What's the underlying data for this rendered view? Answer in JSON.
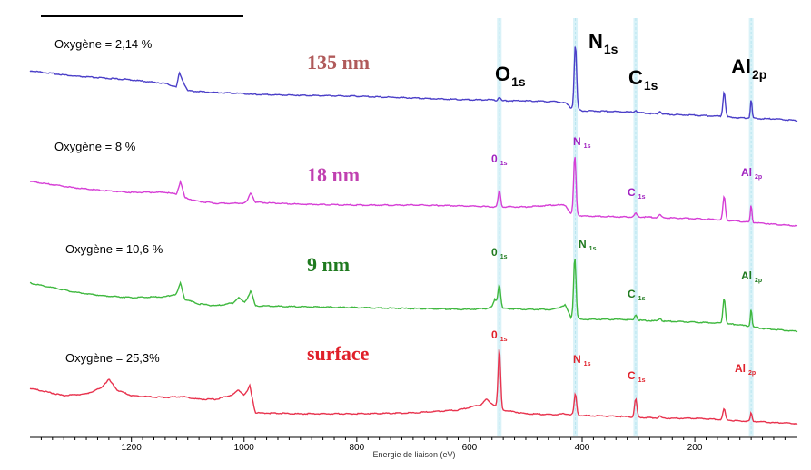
{
  "chart_data": {
    "type": "line",
    "xlabel": "Energie de liaison (eV)",
    "xlim": [
      1380,
      18
    ],
    "x_reversed": true,
    "x_ticks": [
      1200,
      1000,
      800,
      600,
      400,
      200
    ],
    "x_tick_labels": [
      "1200",
      "1000",
      "800",
      "600",
      "400",
      "200"
    ],
    "peak_markers": [
      {
        "name": "O 1s",
        "x": 547
      },
      {
        "name": "N 1s",
        "x": 412
      },
      {
        "name": "C 1s",
        "x": 305
      },
      {
        "name": "Al 2p",
        "x": 100
      }
    ],
    "series": [
      {
        "id": "s135",
        "depth_label": "135 nm",
        "oxygen_label": "Oxygène = 2,14 %",
        "color": "#4b3fc8",
        "baseline": [
          [
            1380,
            78
          ],
          [
            1300,
            84
          ],
          [
            1250,
            86
          ],
          [
            1200,
            88
          ],
          [
            1140,
            92
          ],
          [
            1120,
            96
          ],
          [
            1115,
            80
          ],
          [
            1105,
            94
          ],
          [
            1100,
            100
          ],
          [
            1050,
            102
          ],
          [
            1000,
            103
          ],
          [
            990,
            104
          ],
          [
            900,
            105
          ],
          [
            800,
            106
          ],
          [
            700,
            108
          ],
          [
            600,
            110
          ],
          [
            560,
            110
          ],
          [
            550,
            111
          ],
          [
            540,
            111
          ],
          [
            500,
            111
          ],
          [
            450,
            112
          ],
          [
            430,
            113
          ],
          [
            420,
            119
          ],
          [
            400,
            122
          ],
          [
            330,
            123
          ],
          [
            300,
            124
          ],
          [
            280,
            125
          ],
          [
            250,
            126
          ],
          [
            200,
            127
          ],
          [
            160,
            128
          ],
          [
            140,
            129
          ],
          [
            120,
            130
          ],
          [
            100,
            130
          ],
          [
            80,
            131
          ],
          [
            60,
            131
          ],
          [
            40,
            132
          ],
          [
            18,
            133
          ]
        ],
        "peaks": [
          {
            "x": 412,
            "h": 71,
            "w": 3
          },
          {
            "x": 547,
            "h": 4,
            "w": 3
          },
          {
            "x": 305,
            "h": 2,
            "w": 3
          },
          {
            "x": 262,
            "h": 3,
            "w": 3
          },
          {
            "x": 148,
            "h": 27,
            "w": 3
          },
          {
            "x": 100,
            "h": 21,
            "w": 2
          }
        ]
      },
      {
        "id": "s18",
        "depth_label": "18 nm",
        "oxygen_label": "Oxygène = 8 %",
        "color": "#d63fd6",
        "baseline": [
          [
            1380,
            200
          ],
          [
            1300,
            207
          ],
          [
            1250,
            210
          ],
          [
            1200,
            212
          ],
          [
            1140,
            212
          ],
          [
            1120,
            214
          ],
          [
            1113,
            200
          ],
          [
            1105,
            218
          ],
          [
            1080,
            222
          ],
          [
            1050,
            224
          ],
          [
            1000,
            224
          ],
          [
            995,
            222
          ],
          [
            988,
            212
          ],
          [
            980,
            223
          ],
          [
            900,
            225
          ],
          [
            800,
            226
          ],
          [
            700,
            226
          ],
          [
            600,
            227
          ],
          [
            560,
            228
          ],
          [
            550,
            228
          ],
          [
            500,
            228
          ],
          [
            450,
            226
          ],
          [
            430,
            226
          ],
          [
            420,
            236
          ],
          [
            400,
            238
          ],
          [
            330,
            239
          ],
          [
            300,
            239
          ],
          [
            250,
            240
          ],
          [
            200,
            241
          ],
          [
            160,
            242
          ],
          [
            140,
            243
          ],
          [
            120,
            244
          ],
          [
            100,
            245
          ],
          [
            80,
            246
          ],
          [
            60,
            247
          ],
          [
            40,
            248
          ],
          [
            18,
            249
          ]
        ],
        "peaks": [
          {
            "x": 413,
            "h": 65,
            "w": 3
          },
          {
            "x": 547,
            "h": 18,
            "w": 3
          },
          {
            "x": 305,
            "h": 4,
            "w": 3
          },
          {
            "x": 262,
            "h": 3,
            "w": 3
          },
          {
            "x": 148,
            "h": 26,
            "w": 3
          },
          {
            "x": 100,
            "h": 19,
            "w": 2
          }
        ]
      },
      {
        "id": "s9",
        "depth_label": "9 nm",
        "oxygen_label": "Oxygène = 10,6 %",
        "color": "#3fb83f",
        "baseline": [
          [
            1380,
            312
          ],
          [
            1300,
            322
          ],
          [
            1250,
            326
          ],
          [
            1200,
            328
          ],
          [
            1140,
            327
          ],
          [
            1120,
            324
          ],
          [
            1113,
            312
          ],
          [
            1105,
            330
          ],
          [
            1080,
            335
          ],
          [
            1050,
            337
          ],
          [
            1020,
            334
          ],
          [
            1010,
            328
          ],
          [
            1000,
            333
          ],
          [
            995,
            330
          ],
          [
            988,
            320
          ],
          [
            980,
            337
          ],
          [
            900,
            338
          ],
          [
            800,
            339
          ],
          [
            700,
            340
          ],
          [
            600,
            341
          ],
          [
            570,
            340
          ],
          [
            560,
            338
          ],
          [
            555,
            330
          ],
          [
            540,
            340
          ],
          [
            500,
            341
          ],
          [
            450,
            341
          ],
          [
            430,
            336
          ],
          [
            420,
            350
          ],
          [
            400,
            352
          ],
          [
            330,
            352
          ],
          [
            300,
            353
          ],
          [
            250,
            354
          ],
          [
            200,
            355
          ],
          [
            160,
            356
          ],
          [
            140,
            357
          ],
          [
            120,
            358
          ],
          [
            100,
            360
          ],
          [
            80,
            362
          ],
          [
            60,
            363
          ],
          [
            40,
            364
          ],
          [
            18,
            365
          ]
        ],
        "peaks": [
          {
            "x": 413,
            "h": 67,
            "w": 3
          },
          {
            "x": 547,
            "h": 22,
            "w": 3
          },
          {
            "x": 305,
            "h": 6,
            "w": 3
          },
          {
            "x": 262,
            "h": 3,
            "w": 3
          },
          {
            "x": 148,
            "h": 28,
            "w": 3
          },
          {
            "x": 100,
            "h": 20,
            "w": 2
          }
        ]
      },
      {
        "id": "ssurf",
        "depth_label": "surface",
        "oxygen_label": "Oxygène = 25,3%",
        "color": "#e8334e",
        "baseline": [
          [
            1380,
            428
          ],
          [
            1320,
            436
          ],
          [
            1280,
            434
          ],
          [
            1255,
            428
          ],
          [
            1240,
            418
          ],
          [
            1225,
            430
          ],
          [
            1200,
            436
          ],
          [
            1140,
            438
          ],
          [
            1110,
            437
          ],
          [
            1080,
            440
          ],
          [
            1050,
            440
          ],
          [
            1020,
            435
          ],
          [
            1010,
            430
          ],
          [
            1000,
            435
          ],
          [
            995,
            432
          ],
          [
            990,
            425
          ],
          [
            985,
            440
          ],
          [
            980,
            455
          ],
          [
            900,
            456
          ],
          [
            800,
            456
          ],
          [
            700,
            455
          ],
          [
            620,
            452
          ],
          [
            580,
            446
          ],
          [
            570,
            440
          ],
          [
            560,
            445
          ],
          [
            550,
            448
          ],
          [
            540,
            452
          ],
          [
            500,
            456
          ],
          [
            450,
            457
          ],
          [
            430,
            456
          ],
          [
            420,
            457
          ],
          [
            400,
            458
          ],
          [
            330,
            459
          ],
          [
            300,
            460
          ],
          [
            250,
            461
          ],
          [
            200,
            461
          ],
          [
            160,
            462
          ],
          [
            140,
            463
          ],
          [
            120,
            464
          ],
          [
            100,
            464
          ],
          [
            80,
            465
          ],
          [
            60,
            466
          ],
          [
            40,
            466
          ],
          [
            18,
            467
          ]
        ],
        "peaks": [
          {
            "x": 547,
            "h": 65,
            "w": 3
          },
          {
            "x": 412,
            "h": 23,
            "w": 3
          },
          {
            "x": 305,
            "h": 20,
            "w": 3
          },
          {
            "x": 262,
            "h": 2,
            "w": 3
          },
          {
            "x": 148,
            "h": 12,
            "w": 3
          },
          {
            "x": 100,
            "h": 9,
            "w": 2
          }
        ]
      }
    ],
    "annotations": [
      {
        "id": "o1s_top",
        "text": "O",
        "sub": "1s",
        "color": "#000000",
        "size": 22,
        "weight": "bold"
      },
      {
        "id": "n1s_top",
        "text": "N",
        "sub": "1s",
        "color": "#000000",
        "size": 22,
        "weight": "bold"
      },
      {
        "id": "c1s_top",
        "text": "C",
        "sub": "1s",
        "color": "#000000",
        "size": 22,
        "weight": "bold"
      },
      {
        "id": "al2p_top",
        "text": "Al",
        "sub": "2p",
        "color": "#000000",
        "size": 22,
        "weight": "bold"
      },
      {
        "id": "o1s_s18",
        "text": "0",
        "sub": "1s",
        "color": "#a020c0",
        "size": 12,
        "weight": "bold"
      },
      {
        "id": "n1s_s18",
        "text": "N",
        "sub": "1s",
        "color": "#a020c0",
        "size": 12,
        "weight": "bold"
      },
      {
        "id": "c1s_s18",
        "text": "C",
        "sub": "1s",
        "color": "#a020c0",
        "size": 12,
        "weight": "bold"
      },
      {
        "id": "al2p_s18",
        "text": "Al",
        "sub": "2p",
        "color": "#a020c0",
        "size": 12,
        "weight": "bold"
      },
      {
        "id": "o1s_s9",
        "text": "0",
        "sub": "1s",
        "color": "#1f7a1f",
        "size": 12,
        "weight": "bold"
      },
      {
        "id": "n1s_s9",
        "text": "N",
        "sub": "1s",
        "color": "#1f7a1f",
        "size": 12,
        "weight": "bold"
      },
      {
        "id": "c1s_s9",
        "text": "C",
        "sub": "1s",
        "color": "#1f7a1f",
        "size": 12,
        "weight": "bold"
      },
      {
        "id": "al2p_s9",
        "text": "Al",
        "sub": "2p",
        "color": "#1f7a1f",
        "size": 12,
        "weight": "bold"
      },
      {
        "id": "o1s_surf",
        "text": "0",
        "sub": "1s",
        "color": "#e0202a",
        "size": 12,
        "weight": "bold"
      },
      {
        "id": "n1s_surf",
        "text": "N",
        "sub": "1s",
        "color": "#e0202a",
        "size": 12,
        "weight": "bold"
      },
      {
        "id": "c1s_surf",
        "text": "C",
        "sub": "1s",
        "color": "#e0202a",
        "size": 12,
        "weight": "bold"
      },
      {
        "id": "al2p_surf",
        "text": "Al",
        "sub": "2p",
        "color": "#e0202a",
        "size": 12,
        "weight": "bold"
      }
    ],
    "depth_label_colors": {
      "s135": "#b05a5a",
      "s18": "#c040b0",
      "s9": "#1f7a1f",
      "ssurf": "#e0202a"
    },
    "grid": false,
    "legend": "none"
  }
}
